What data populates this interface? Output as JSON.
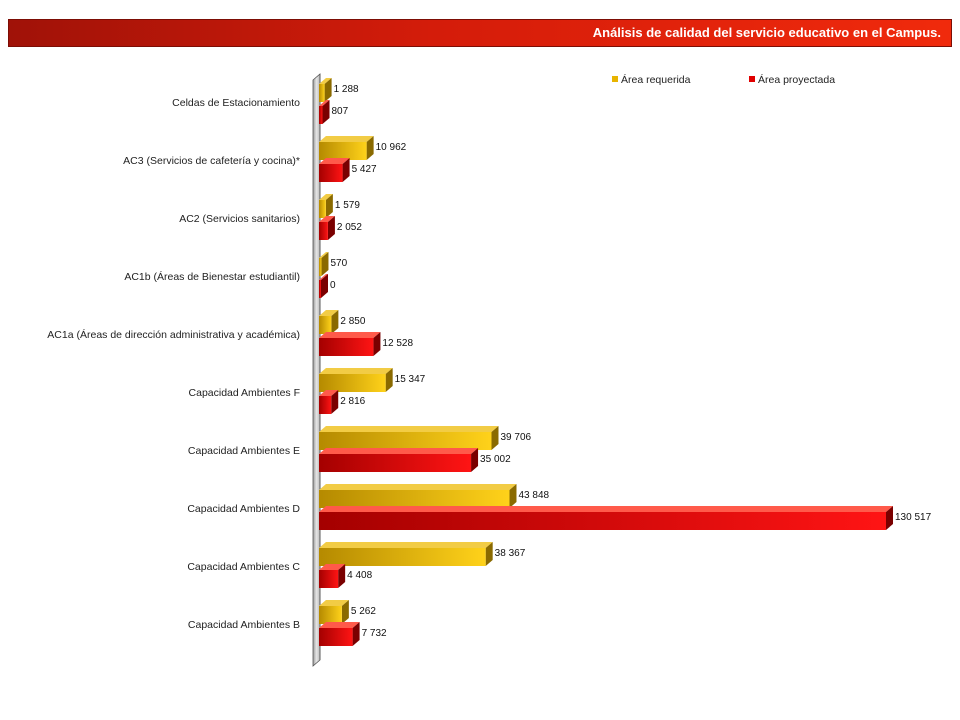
{
  "header": {
    "title": "Análisis de calidad del servicio educativo en el Campus."
  },
  "colors": {
    "series1": "#e8b400",
    "series2": "#e00000",
    "title_bg": "#d41c0a"
  },
  "chart_data": {
    "type": "bar",
    "orientation": "horizontal",
    "three_d": true,
    "grid": false,
    "legend_position": "top-right",
    "categories": [
      "Celdas de Estacionamiento",
      "AC3 (Servicios de cafetería y cocina)*",
      "AC2 (Servicios sanitarios)",
      "AC1b (Áreas de Bienestar estudiantil)",
      "AC1a (Áreas de dirección administrativa y académica)",
      "Capacidad Ambientes F",
      "Capacidad Ambientes E",
      "Capacidad Ambientes D",
      "Capacidad Ambientes C",
      "Capacidad Ambientes B"
    ],
    "series": [
      {
        "name": "Área requerida",
        "values": [
          1288,
          10962,
          1579,
          570,
          2850,
          15347,
          39706,
          43848,
          38367,
          5262
        ],
        "labels": [
          "1 288",
          "10 962",
          "1 579",
          "570",
          "2 850",
          "15 347",
          "39 706",
          "43 848",
          "38 367",
          "5 262"
        ]
      },
      {
        "name": "Área proyectada",
        "values": [
          807,
          5427,
          2052,
          0,
          12528,
          2816,
          35002,
          130517,
          4408,
          7732
        ],
        "labels": [
          "807",
          "5 427",
          "2 052",
          "0",
          "12 528",
          "2 816",
          "35 002",
          "130 517",
          "4 408",
          "7 732"
        ]
      }
    ],
    "xlim": [
      0,
      130517
    ]
  }
}
